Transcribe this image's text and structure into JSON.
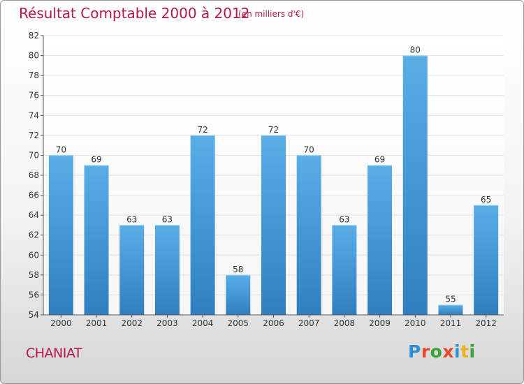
{
  "header": {
    "title": "Résultat Comptable 2000 à 2012",
    "subtitle": "(en milliers d'€)"
  },
  "footer": {
    "commune": "CHANIAT"
  },
  "logo": {
    "letters": [
      "P",
      "r",
      "o",
      "x",
      "i",
      "t",
      "i"
    ],
    "colors": [
      "#2a8fd6",
      "#e8472a",
      "#3aa33a",
      "#e8472a",
      "#2a8fd6",
      "#e8b414",
      "#3aa33a"
    ]
  },
  "chart_data": {
    "type": "bar",
    "title": "Résultat Comptable 2000 à 2012",
    "subtitle": "(en milliers d'€)",
    "categories": [
      "2000",
      "2001",
      "2002",
      "2003",
      "2004",
      "2005",
      "2006",
      "2007",
      "2008",
      "2009",
      "2010",
      "2011",
      "2012"
    ],
    "values": [
      70,
      69,
      63,
      63,
      72,
      58,
      72,
      70,
      63,
      69,
      80,
      55,
      65
    ],
    "ylim": [
      54,
      82
    ],
    "yticks": [
      54,
      56,
      58,
      60,
      62,
      64,
      66,
      68,
      70,
      72,
      74,
      76,
      78,
      80,
      82
    ],
    "grid": true,
    "bar_color_top": "#5aaee6",
    "bar_color_bottom": "#2f7fc0"
  }
}
